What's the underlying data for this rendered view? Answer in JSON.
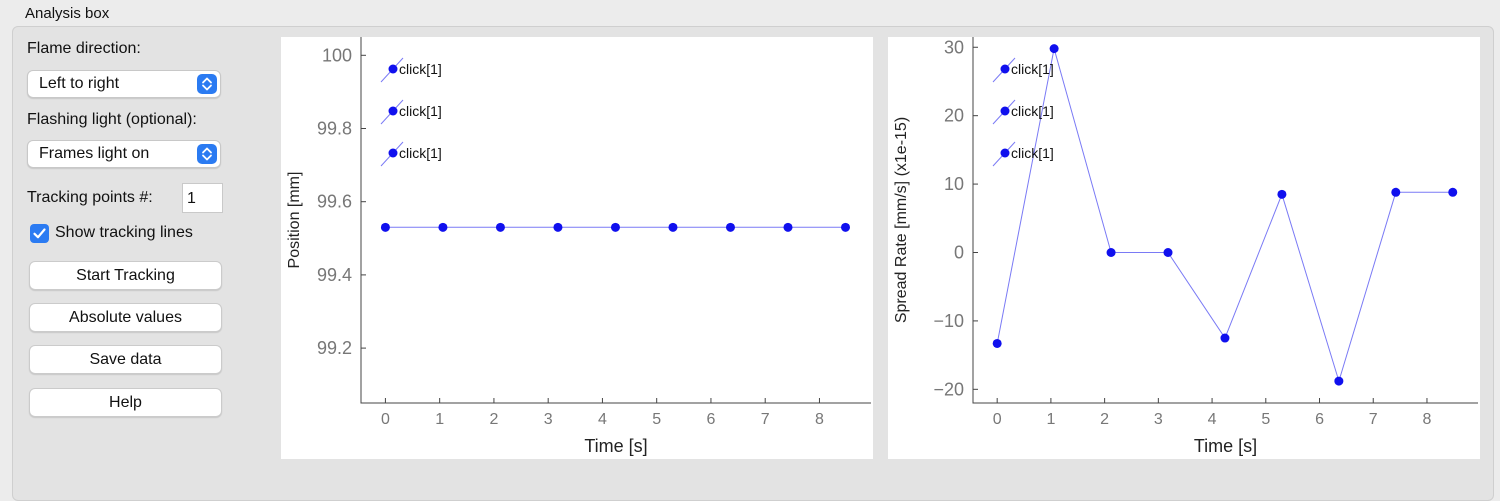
{
  "panel": {
    "title": "Analysis box"
  },
  "controls": {
    "flame_direction_label": "Flame direction:",
    "flame_direction_value": "Left to right",
    "flashing_light_label": "Flashing light (optional):",
    "flashing_light_value": "Frames light on",
    "tracking_points_label": "Tracking points #:",
    "tracking_points_value": "1",
    "show_tracking_lines_label": "Show tracking lines",
    "show_tracking_lines_checked": true
  },
  "buttons": {
    "start": "Start Tracking",
    "absolute": "Absolute values",
    "save": "Save data",
    "help": "Help"
  },
  "colors": {
    "marker": "#1010ee",
    "line": "#7a7af5",
    "accent": "#2b7bf2"
  },
  "icons": {
    "select_stepper": "up-down-chevron-icon",
    "checkbox": "checkmark-icon"
  },
  "chart_data": [
    {
      "type": "line",
      "title": "",
      "xlabel": "Time [s]",
      "ylabel": "Position [mm]",
      "xlim": [
        -0.45,
        8.95
      ],
      "ylim": [
        99.05,
        100.05
      ],
      "xticks": [
        0,
        1,
        2,
        3,
        4,
        5,
        6,
        7,
        8
      ],
      "yticks": [
        99.2,
        99.4,
        99.6,
        99.8,
        100
      ],
      "ytick_labels": [
        "99.2",
        "99.4",
        "99.6",
        "99.8",
        "100"
      ],
      "grid": false,
      "legend_label": "click[1]",
      "legend_entries": 3,
      "series": [
        {
          "x": [
            0,
            1.06,
            2.12,
            3.18,
            4.24,
            5.3,
            6.36,
            7.42,
            8.48
          ],
          "values": [
            99.53,
            99.53,
            99.53,
            99.53,
            99.53,
            99.53,
            99.53,
            99.53,
            99.53
          ]
        }
      ]
    },
    {
      "type": "line",
      "title": "",
      "xlabel": "Time [s]",
      "ylabel": "Spread Rate [mm/s] (x1e-15)",
      "xlim": [
        -0.45,
        8.95
      ],
      "ylim": [
        -22,
        31.5
      ],
      "xticks": [
        0,
        1,
        2,
        3,
        4,
        5,
        6,
        7,
        8
      ],
      "yticks": [
        -20,
        -10,
        0,
        10,
        20,
        30
      ],
      "ytick_labels": [
        "−20",
        "−10",
        "0",
        "10",
        "20",
        "30"
      ],
      "grid": false,
      "legend_label": "click[1]",
      "legend_entries": 3,
      "series": [
        {
          "x": [
            0,
            1.06,
            2.12,
            3.18,
            4.24,
            5.3,
            6.36,
            7.42,
            8.48
          ],
          "values": [
            -13.3,
            29.8,
            0,
            0,
            -12.5,
            8.5,
            -18.8,
            8.8,
            8.8
          ]
        }
      ]
    }
  ]
}
